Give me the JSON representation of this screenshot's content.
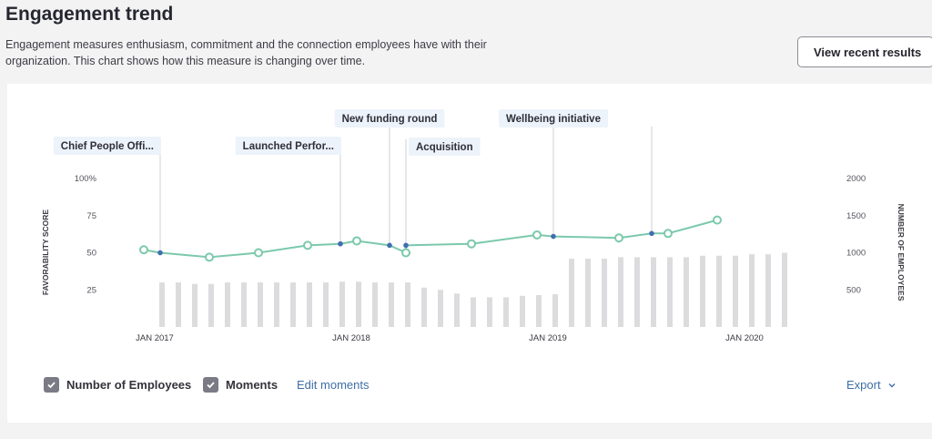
{
  "header": {
    "title": "Engagement trend",
    "description": "Engagement measures enthusiasm, commitment and the connection employees have with their organization. This chart shows how this measure is changing over time.",
    "view_button_label": "View recent results"
  },
  "chart_data": {
    "type": "line",
    "x_tick_labels": [
      "JAN 2017",
      "JAN 2018",
      "JAN 2019",
      "JAN 2020"
    ],
    "x_range": [
      "2016-11",
      "2020-06"
    ],
    "left_axis": {
      "label": "FAVORABILITY SCORE",
      "ticks": [
        "100%",
        "75",
        "50",
        "25"
      ],
      "tick_values": [
        100,
        75,
        50,
        25
      ],
      "range": [
        0,
        100
      ]
    },
    "right_axis": {
      "label": "NUMBER OF EMPLOYEES",
      "ticks": [
        "2000",
        "1500",
        "1000",
        "500"
      ],
      "tick_values": [
        2000,
        1500,
        1000,
        500
      ],
      "range": [
        0,
        2000
      ]
    },
    "favorability_series": {
      "color": "#7cc9ac",
      "points": [
        {
          "date": "2017-02",
          "value": 52
        },
        {
          "date": "2017-06",
          "value": 47
        },
        {
          "date": "2017-09",
          "value": 50
        },
        {
          "date": "2017-12",
          "value": 55
        },
        {
          "date": "2018-03",
          "value": 58
        },
        {
          "date": "2018-06",
          "value": 50
        },
        {
          "date": "2018-10",
          "value": 56
        },
        {
          "date": "2019-02",
          "value": 62
        },
        {
          "date": "2019-07",
          "value": 60
        },
        {
          "date": "2019-10",
          "value": 63
        },
        {
          "date": "2020-01",
          "value": 72
        }
      ]
    },
    "moment_markers": [
      {
        "date": "2017-03",
        "value": 50,
        "label": "Chief People Offi...",
        "row": 2
      },
      {
        "date": "2018-02",
        "value": 56,
        "label": "Launched Perfor...",
        "row": 2
      },
      {
        "date": "2018-05",
        "value": 55,
        "label": "New funding round",
        "row": 1
      },
      {
        "date": "2018-06",
        "value": 55,
        "label": "Acquisition",
        "row": 3
      },
      {
        "date": "2019-03",
        "value": 61,
        "label": "Wellbeing initiative",
        "row": 1
      },
      {
        "date": "2019-09",
        "value": 63,
        "label": "",
        "row": 0
      }
    ],
    "employees_series": {
      "name": "Number of Employees",
      "color": "#dcdcde",
      "dates": [
        "2017-01",
        "2017-02",
        "2017-03",
        "2017-04",
        "2017-05",
        "2017-06",
        "2017-07",
        "2017-08",
        "2017-09",
        "2017-10",
        "2017-11",
        "2017-12",
        "2018-01",
        "2018-02",
        "2018-03",
        "2018-04",
        "2018-05",
        "2018-06",
        "2018-07",
        "2018-08",
        "2018-09",
        "2018-10",
        "2018-11",
        "2018-12",
        "2019-01",
        "2019-02",
        "2019-03",
        "2019-04",
        "2019-05",
        "2019-06",
        "2019-07",
        "2019-08",
        "2019-09",
        "2019-10",
        "2019-11",
        "2019-12",
        "2020-01",
        "2020-02",
        "2020-03"
      ],
      "values": [
        600,
        600,
        580,
        580,
        600,
        600,
        600,
        600,
        600,
        600,
        600,
        610,
        610,
        600,
        600,
        600,
        530,
        500,
        450,
        400,
        400,
        400,
        420,
        430,
        440,
        920,
        920,
        920,
        940,
        940,
        940,
        940,
        940,
        960,
        960,
        960,
        980,
        980,
        1000
      ]
    }
  },
  "controls": {
    "employees_toggle_label": "Number of Employees",
    "moments_toggle_label": "Moments",
    "edit_moments_label": "Edit moments",
    "export_label": "Export"
  }
}
